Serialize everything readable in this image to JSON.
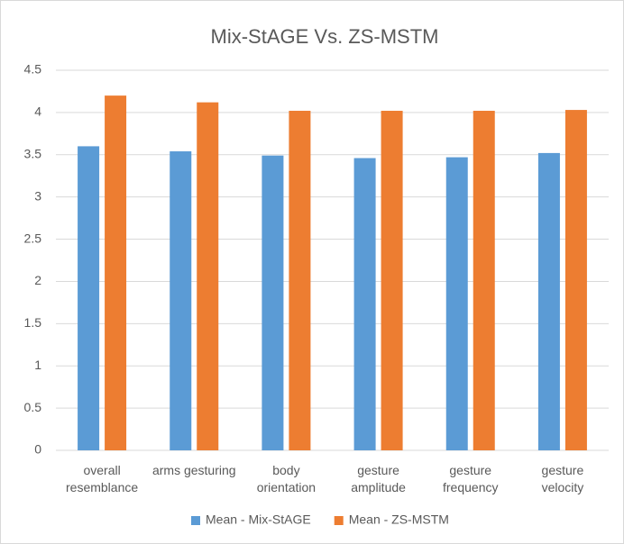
{
  "chart_data": {
    "type": "bar",
    "title": "Mix-StAGE Vs. ZS-MSTM",
    "categories": [
      "overall\nresemblance",
      "arms gesturing",
      "body\norientation",
      "gesture\namplitude",
      "gesture\nfrequency",
      "gesture\nvelocity"
    ],
    "series": [
      {
        "name": "Mean - Mix-StAGE",
        "color": "#5b9bd5",
        "values": [
          3.6,
          3.54,
          3.49,
          3.46,
          3.47,
          3.52
        ]
      },
      {
        "name": "Mean - ZS-MSTM",
        "color": "#ed7d31",
        "values": [
          4.2,
          4.12,
          4.02,
          4.02,
          4.02,
          4.03
        ]
      }
    ],
    "ylim": [
      0,
      4.5
    ],
    "yticks": [
      0,
      0.5,
      1,
      1.5,
      2,
      2.5,
      3,
      3.5,
      4,
      4.5
    ],
    "grid": true,
    "legend": "bottom"
  }
}
